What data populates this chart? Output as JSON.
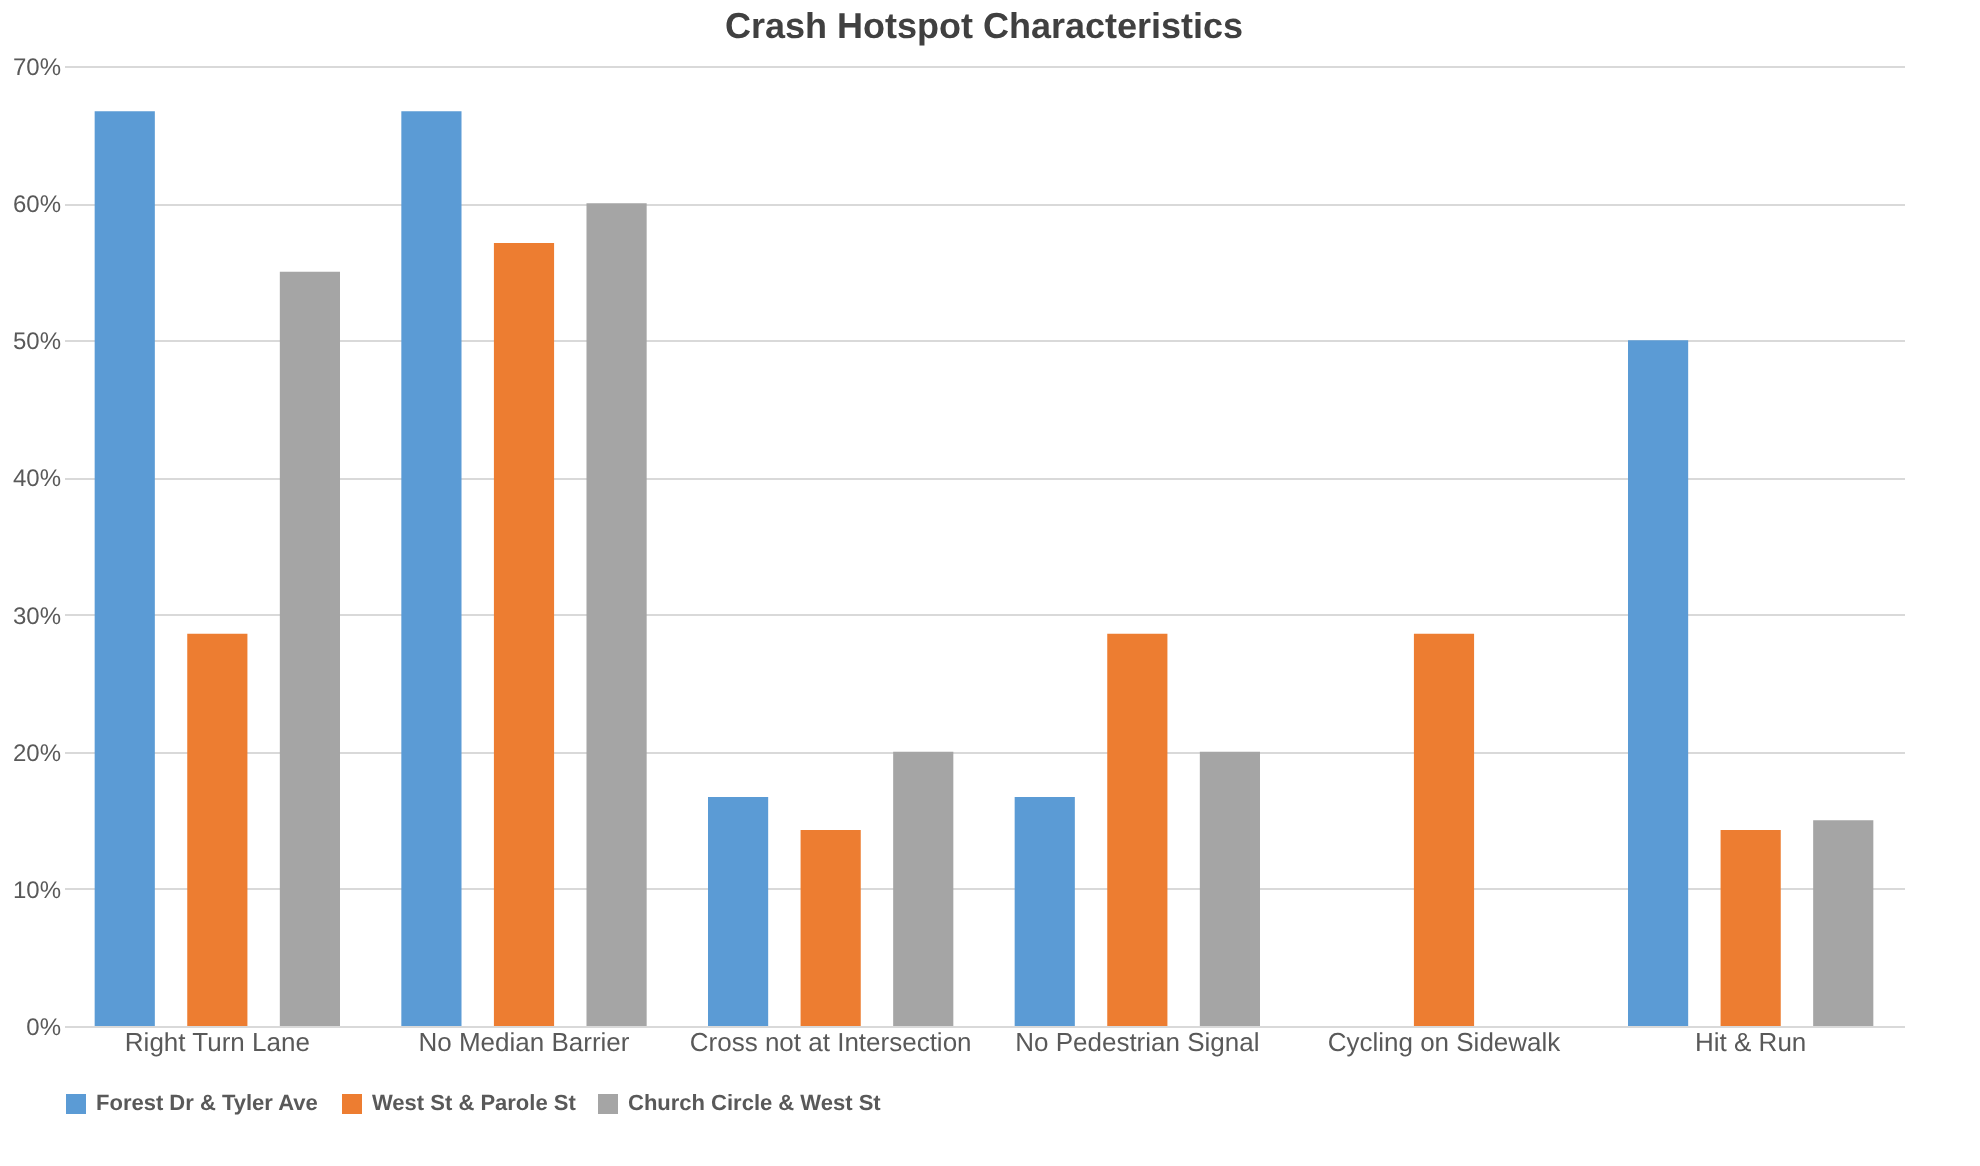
{
  "chart_data": {
    "type": "bar",
    "title": "Crash Hotspot Characteristics",
    "categories": [
      "Right Turn Lane",
      "No Median Barrier",
      "Cross not at Intersection",
      "No Pedestrian Signal",
      "Cycling on Sidewalk",
      "Hit & Run"
    ],
    "series": [
      {
        "name": "Forest Dr & Tyler Ave",
        "color": "#5b9bd5",
        "values": [
          66.7,
          66.7,
          16.7,
          16.7,
          0,
          50
        ]
      },
      {
        "name": "West St & Parole St",
        "color": "#ed7d31",
        "values": [
          28.6,
          57.1,
          14.3,
          28.6,
          28.6,
          14.3
        ]
      },
      {
        "name": "Church Circle & West St",
        "color": "#a5a5a5",
        "values": [
          55,
          60,
          20,
          20,
          0,
          15
        ]
      }
    ],
    "ylim": [
      0,
      70
    ],
    "yticks": [
      {
        "value": 0,
        "label": "0%"
      },
      {
        "value": 10,
        "label": "10%"
      },
      {
        "value": 20,
        "label": "20%"
      },
      {
        "value": 30,
        "label": "30%"
      },
      {
        "value": 40,
        "label": "40%"
      },
      {
        "value": 50,
        "label": "50%"
      },
      {
        "value": 60,
        "label": "60%"
      },
      {
        "value": 70,
        "label": "70%"
      }
    ],
    "grid": "y",
    "legend": "bottom"
  }
}
